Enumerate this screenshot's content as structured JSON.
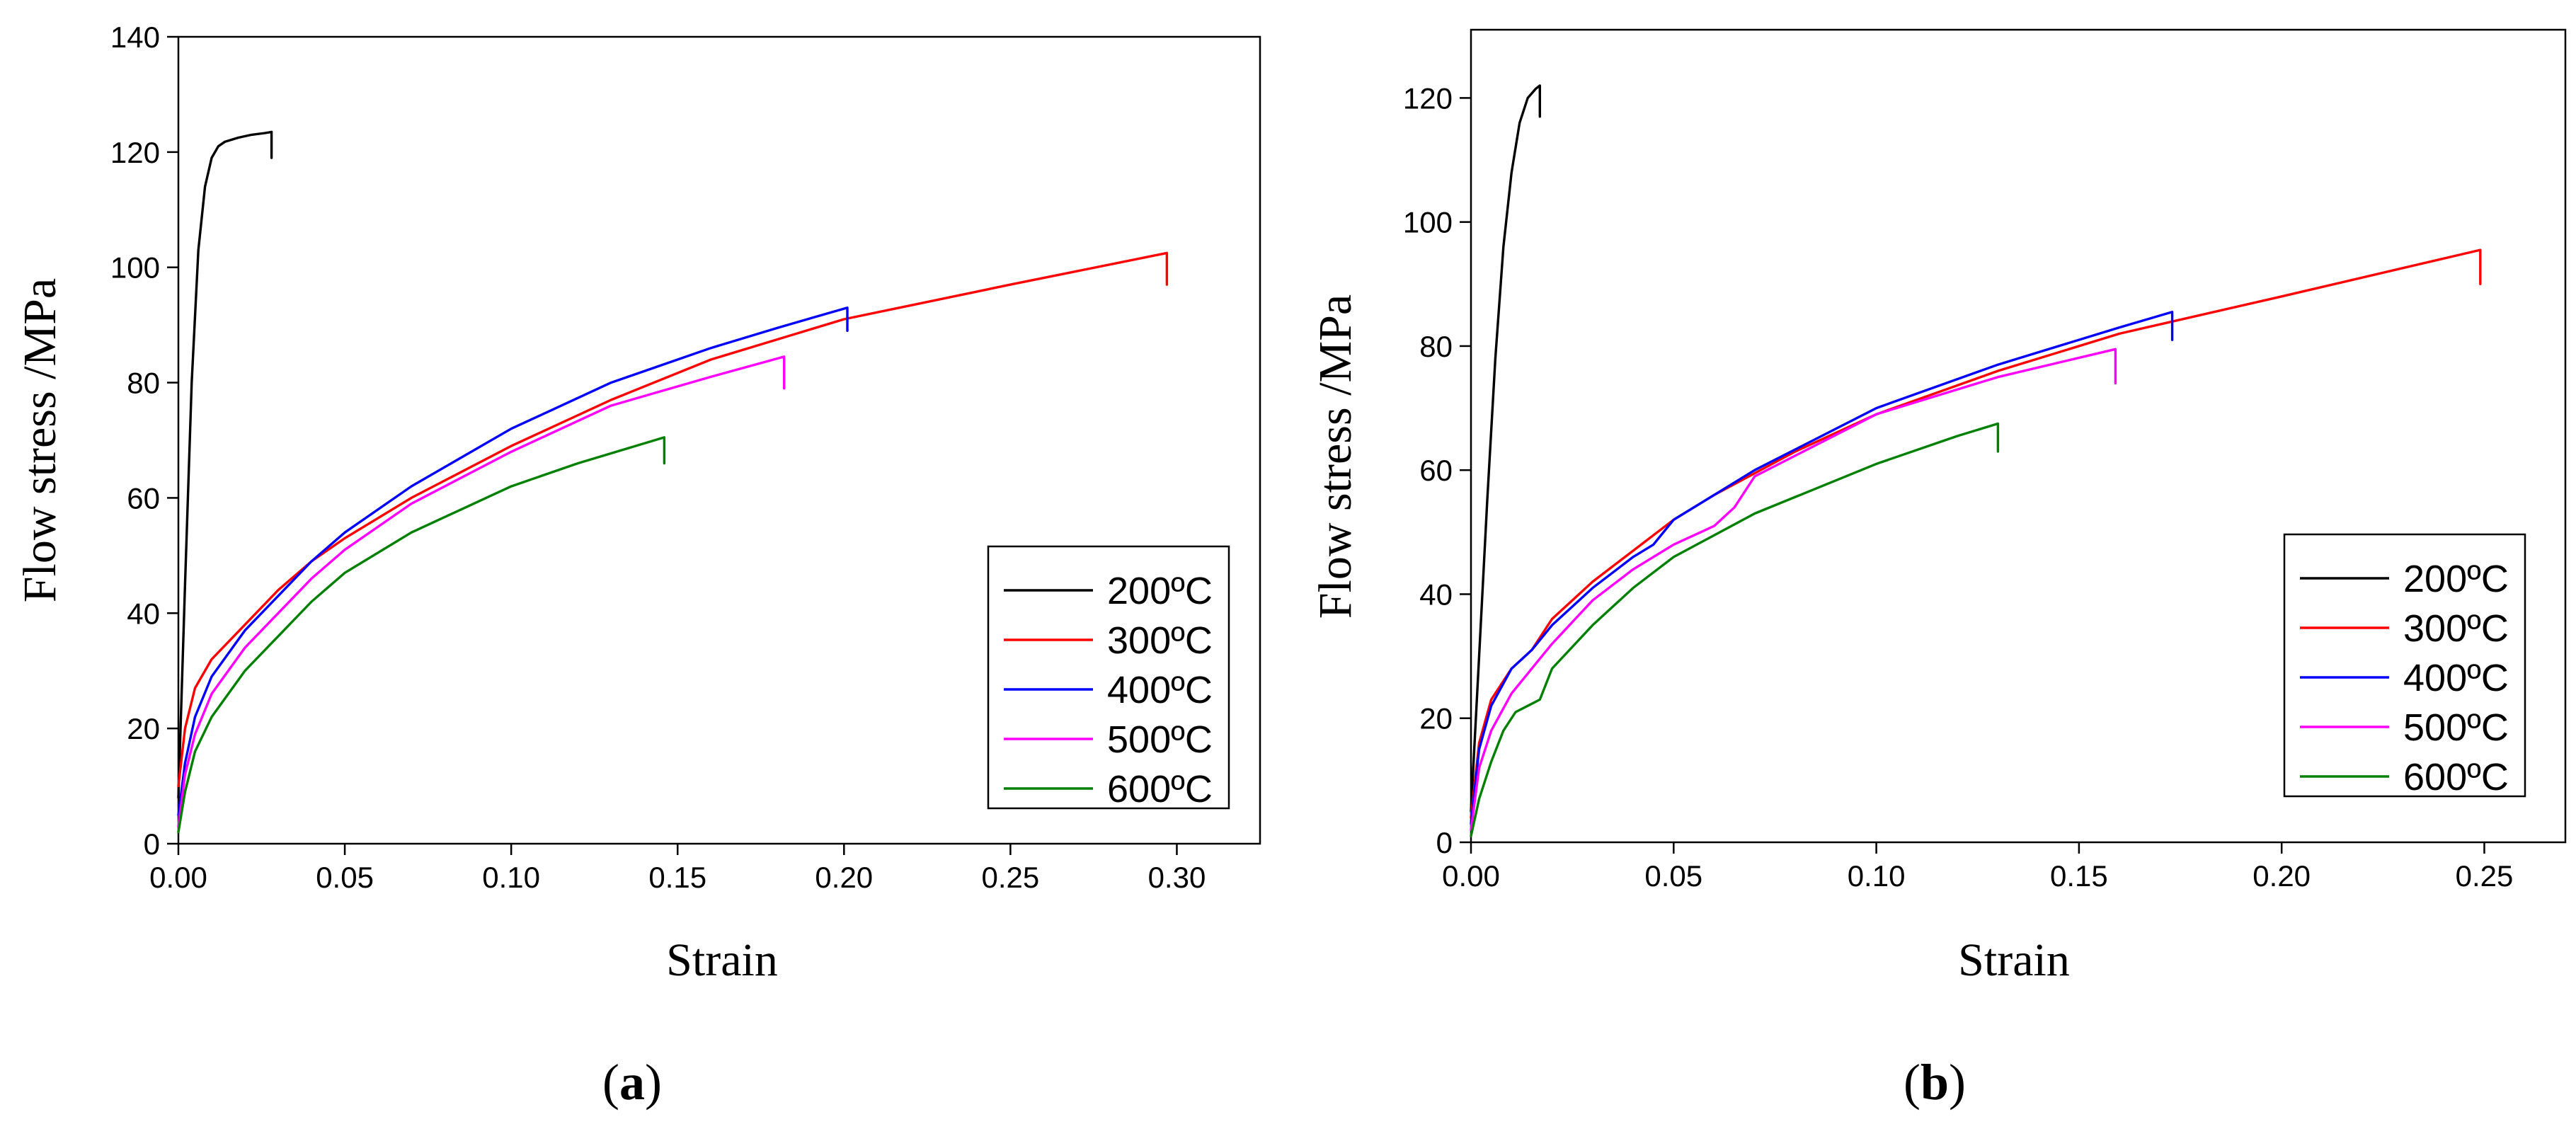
{
  "chart_data": [
    {
      "type": "line",
      "panel_label": {
        "open": "(",
        "letter": "a",
        "close": ")"
      },
      "xlabel": "Strain",
      "ylabel": "Flow stress /MPa",
      "xlim": [
        0,
        0.325
      ],
      "ylim": [
        0,
        140
      ],
      "xticks": [
        0,
        0.05,
        0.1,
        0.15,
        0.2,
        0.25,
        0.3
      ],
      "xtick_labels": [
        "0.00",
        "0.05",
        "0.10",
        "0.15",
        "0.20",
        "0.25",
        "0.30"
      ],
      "yticks": [
        0,
        20,
        40,
        60,
        80,
        100,
        120,
        140
      ],
      "ytick_labels": [
        "0",
        "20",
        "40",
        "60",
        "80",
        "100",
        "120",
        "140"
      ],
      "legend_position": "lower-right",
      "series": [
        {
          "name": "200ºC",
          "color": "#000000",
          "x": [
            0,
            0.002,
            0.004,
            0.006,
            0.008,
            0.01,
            0.012,
            0.014,
            0.018,
            0.022,
            0.026,
            0.028,
            0.028
          ],
          "y": [
            8,
            45,
            80,
            103,
            114,
            119,
            121,
            121.8,
            122.5,
            123,
            123.3,
            123.5,
            119
          ]
        },
        {
          "name": "300ºC",
          "color": "#ff0000",
          "x": [
            0,
            0.002,
            0.005,
            0.01,
            0.02,
            0.03,
            0.04,
            0.05,
            0.07,
            0.1,
            0.13,
            0.16,
            0.2,
            0.25,
            0.297,
            0.297
          ],
          "y": [
            10,
            20,
            27,
            32,
            38,
            44,
            49,
            53,
            60,
            69,
            77,
            84,
            91,
            97,
            102.5,
            97
          ]
        },
        {
          "name": "400ºC",
          "color": "#0000ff",
          "x": [
            0,
            0.002,
            0.005,
            0.01,
            0.02,
            0.03,
            0.04,
            0.05,
            0.07,
            0.1,
            0.13,
            0.16,
            0.18,
            0.201,
            0.201
          ],
          "y": [
            5,
            14,
            22,
            29,
            37,
            43,
            49,
            54,
            62,
            72,
            80,
            86,
            89.5,
            93,
            89
          ]
        },
        {
          "name": "500ºC",
          "color": "#ff00ff",
          "x": [
            0,
            0.002,
            0.005,
            0.01,
            0.02,
            0.03,
            0.04,
            0.05,
            0.07,
            0.1,
            0.13,
            0.16,
            0.182,
            0.182
          ],
          "y": [
            3,
            12,
            19,
            26,
            34,
            40,
            46,
            51,
            59,
            68,
            76,
            81,
            84.5,
            79
          ]
        },
        {
          "name": "600ºC",
          "color": "#008000",
          "x": [
            0,
            0.002,
            0.005,
            0.01,
            0.02,
            0.03,
            0.04,
            0.05,
            0.07,
            0.1,
            0.12,
            0.146,
            0.146
          ],
          "y": [
            2,
            9,
            16,
            22,
            30,
            36,
            42,
            47,
            54,
            62,
            66,
            70.5,
            66
          ]
        }
      ]
    },
    {
      "type": "line",
      "panel_label": {
        "open": "(",
        "letter": "b",
        "close": ")"
      },
      "xlabel": "Strain",
      "ylabel": "Flow stress /MPa",
      "xlim": [
        0,
        0.27
      ],
      "ylim": [
        0,
        131
      ],
      "xticks": [
        0,
        0.05,
        0.1,
        0.15,
        0.2,
        0.25
      ],
      "xtick_labels": [
        "0.00",
        "0.05",
        "0.10",
        "0.15",
        "0.20",
        "0.25"
      ],
      "yticks": [
        0,
        20,
        40,
        60,
        80,
        100,
        120
      ],
      "ytick_labels": [
        "0",
        "20",
        "40",
        "60",
        "80",
        "100",
        "120"
      ],
      "legend_position": "lower-right",
      "series": [
        {
          "name": "200ºC",
          "color": "#000000",
          "x": [
            0,
            0.002,
            0.004,
            0.006,
            0.008,
            0.01,
            0.012,
            0.014,
            0.016,
            0.017,
            0.017
          ],
          "y": [
            5,
            30,
            55,
            78,
            96,
            108,
            116,
            120,
            121.5,
            122,
            117
          ]
        },
        {
          "name": "300ºC",
          "color": "#ff0000",
          "x": [
            0,
            0.002,
            0.005,
            0.01,
            0.015,
            0.02,
            0.03,
            0.04,
            0.05,
            0.06,
            0.08,
            0.1,
            0.13,
            0.16,
            0.2,
            0.249,
            0.249
          ],
          "y": [
            4,
            16,
            23,
            28,
            31,
            36,
            42,
            47,
            52,
            56,
            63,
            69,
            76,
            82,
            88,
            95.5,
            90
          ]
        },
        {
          "name": "400ºC",
          "color": "#0000ff",
          "x": [
            0,
            0.002,
            0.005,
            0.01,
            0.015,
            0.02,
            0.03,
            0.04,
            0.045,
            0.05,
            0.07,
            0.1,
            0.13,
            0.16,
            0.173,
            0.173
          ],
          "y": [
            3,
            15,
            22,
            28,
            31,
            35,
            41,
            46,
            48,
            52,
            60,
            70,
            77,
            83,
            85.5,
            81
          ]
        },
        {
          "name": "500ºC",
          "color": "#ff00ff",
          "x": [
            0,
            0.002,
            0.005,
            0.01,
            0.015,
            0.02,
            0.03,
            0.04,
            0.05,
            0.06,
            0.065,
            0.07,
            0.1,
            0.13,
            0.159,
            0.159
          ],
          "y": [
            2,
            12,
            18,
            24,
            28,
            32,
            39,
            44,
            48,
            51,
            54,
            59,
            69,
            75,
            79.5,
            74
          ]
        },
        {
          "name": "600ºC",
          "color": "#008000",
          "x": [
            0,
            0.002,
            0.005,
            0.008,
            0.011,
            0.014,
            0.017,
            0.02,
            0.03,
            0.04,
            0.05,
            0.07,
            0.1,
            0.12,
            0.13,
            0.13
          ],
          "y": [
            1,
            7,
            13,
            18,
            21,
            22,
            23,
            28,
            35,
            41,
            46,
            53,
            61,
            65.5,
            67.5,
            63
          ]
        }
      ]
    }
  ]
}
